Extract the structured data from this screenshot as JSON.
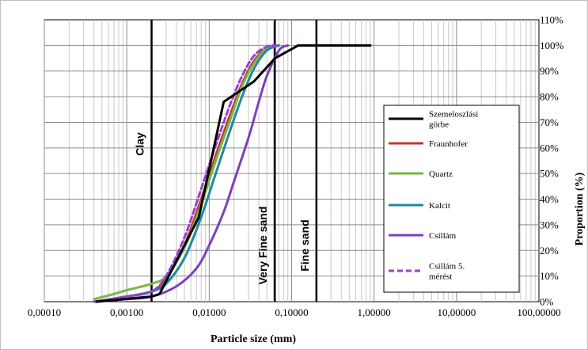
{
  "chart_data": {
    "type": "line",
    "xlabel": "Particle size (mm)",
    "ylabel": "Proportion  (%)",
    "xscale": "log",
    "xlim": [
      0.0001,
      100
    ],
    "ylim": [
      0,
      110
    ],
    "x_tick_labels": [
      "0,00010",
      "0,00100",
      "0,01000",
      "0,10000",
      "1,00000",
      "10,00000",
      "100,00000"
    ],
    "y_tick_labels": [
      "0%",
      "10%",
      "20%",
      "30%",
      "40%",
      "50%",
      "60%",
      "70%",
      "80%",
      "90%",
      "100%",
      "110%"
    ],
    "grid": true,
    "legend_position": "right",
    "boundaries": [
      {
        "label": "Clay",
        "x": 0.002
      },
      {
        "label": "Very Fine sand",
        "x": 0.0625
      },
      {
        "label": "Fine sand",
        "x": 0.2
      }
    ],
    "series": [
      {
        "name": "Szemeloszlási görbe",
        "color": "#000000",
        "dash": false,
        "x": [
          0.00043,
          0.002,
          0.0025,
          0.0075,
          0.015,
          0.035,
          0.063,
          0.12,
          0.5,
          0.9
        ],
        "y": [
          0,
          2,
          3,
          33,
          78,
          86,
          95,
          100,
          100,
          100
        ]
      },
      {
        "name": "Fraunhofer",
        "color": "#c0392b",
        "dash": false,
        "x": [
          0.0004,
          0.001,
          0.002,
          0.003,
          0.005,
          0.008,
          0.012,
          0.018,
          0.025,
          0.035,
          0.05,
          0.07
        ],
        "y": [
          0,
          2,
          4,
          9,
          22,
          40,
          57,
          73,
          85,
          94,
          99,
          100
        ]
      },
      {
        "name": "Quartz",
        "color": "#7ab648",
        "dash": false,
        "x": [
          0.0004,
          0.0007,
          0.001,
          0.002,
          0.003,
          0.005,
          0.008,
          0.012,
          0.018,
          0.025,
          0.035,
          0.05,
          0.07
        ],
        "y": [
          1,
          3,
          4.5,
          7,
          10,
          21,
          38,
          55,
          71,
          84,
          93,
          99,
          100
        ]
      },
      {
        "name": "Kalcit",
        "color": "#1f8a9e",
        "dash": false,
        "x": [
          0.0004,
          0.001,
          0.002,
          0.003,
          0.005,
          0.008,
          0.012,
          0.018,
          0.025,
          0.035,
          0.05,
          0.07
        ],
        "y": [
          0,
          2,
          4,
          7,
          17,
          33,
          50,
          67,
          80,
          91,
          98,
          100
        ]
      },
      {
        "name": "Csillám",
        "color": "#7e3fbf",
        "dash": false,
        "x": [
          0.0004,
          0.001,
          0.002,
          0.004,
          0.007,
          0.01,
          0.015,
          0.02,
          0.03,
          0.04,
          0.05,
          0.07,
          0.09
        ],
        "y": [
          0,
          1,
          2,
          6,
          13,
          22,
          35,
          47,
          64,
          78,
          88,
          98,
          100
        ]
      },
      {
        "name": "Csillám 5. mérést",
        "color": "#9b3fd0",
        "dash": true,
        "x": [
          0.0004,
          0.001,
          0.002,
          0.003,
          0.005,
          0.008,
          0.012,
          0.018,
          0.025,
          0.035,
          0.05,
          0.065
        ],
        "y": [
          0,
          2,
          4,
          10,
          25,
          44,
          61,
          77,
          88,
          96,
          99.5,
          100
        ]
      }
    ]
  }
}
